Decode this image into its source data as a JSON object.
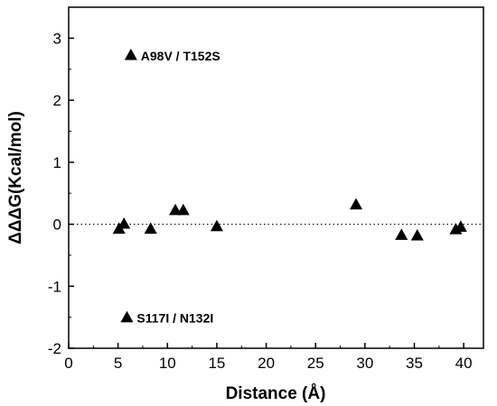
{
  "chart_data": {
    "type": "scatter",
    "title": "",
    "xlabel": "Distance (Å)",
    "ylabel": "ΔΔΔG(Kcal/mol)",
    "xlim": [
      0,
      42
    ],
    "ylim": [
      -2,
      3.5
    ],
    "xticks": [
      "0",
      "5",
      "10",
      "15",
      "20",
      "25",
      "30",
      "35",
      "40"
    ],
    "yticks": [
      "-2",
      "-1",
      "0",
      "1",
      "2",
      "3"
    ],
    "reference_line": {
      "y": 0,
      "style": "dotted"
    },
    "grid": false,
    "marker": "triangle",
    "marker_color": "#000000",
    "points": [
      {
        "x": 6.3,
        "y": 2.73
      },
      {
        "x": 5.9,
        "y": -1.5
      },
      {
        "x": 5.1,
        "y": -0.07
      },
      {
        "x": 5.6,
        "y": 0.01
      },
      {
        "x": 8.3,
        "y": -0.07
      },
      {
        "x": 10.8,
        "y": 0.23
      },
      {
        "x": 11.6,
        "y": 0.23
      },
      {
        "x": 15.0,
        "y": -0.03
      },
      {
        "x": 29.1,
        "y": 0.32
      },
      {
        "x": 33.7,
        "y": -0.17
      },
      {
        "x": 35.3,
        "y": -0.18
      },
      {
        "x": 39.2,
        "y": -0.08
      },
      {
        "x": 39.7,
        "y": -0.04
      }
    ],
    "annotations": [
      {
        "text": "A98V / T152S",
        "x": 7.3,
        "y": 2.73
      },
      {
        "text": "S117I / N132I",
        "x": 6.9,
        "y": -1.5
      }
    ]
  }
}
